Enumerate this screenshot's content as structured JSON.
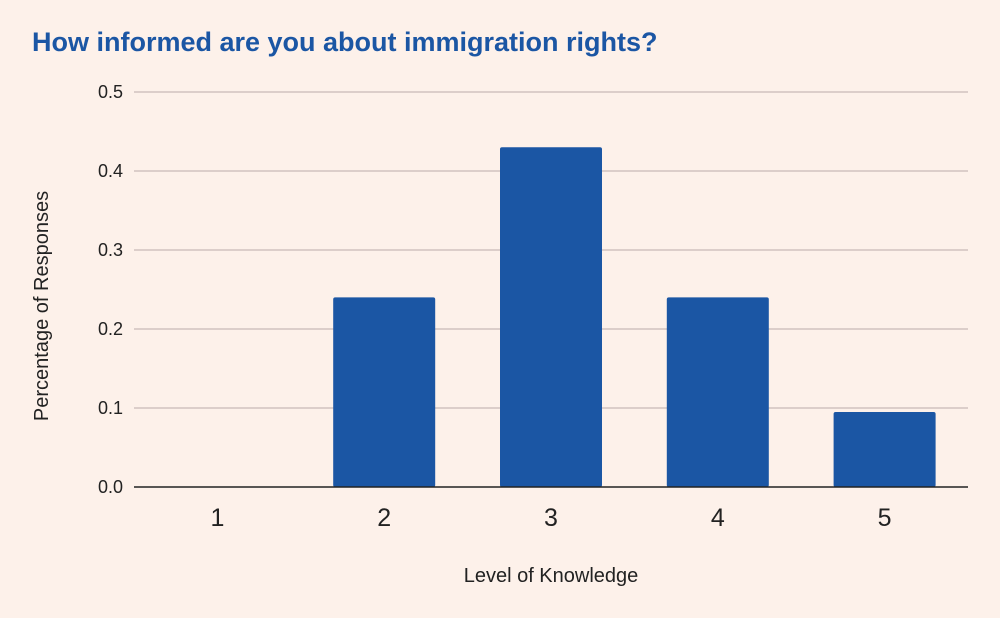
{
  "chart_data": {
    "type": "bar",
    "title": "How informed are you about immigration rights?",
    "xlabel": "Level of Knowledge",
    "ylabel": "Percentage of Responses",
    "categories": [
      "1",
      "2",
      "3",
      "4",
      "5"
    ],
    "values": [
      0.0,
      0.24,
      0.43,
      0.24,
      0.095
    ],
    "ylim": [
      0,
      0.5
    ],
    "yticks": [
      "0.0",
      "0.1",
      "0.2",
      "0.3",
      "0.4",
      "0.5"
    ],
    "grid": true,
    "legend": "none",
    "colors": {
      "bar": "#1b56a4",
      "title": "#1b56a4",
      "grid": "#c9b9b6",
      "axis": "#222222",
      "background": "#fdf1ea"
    }
  }
}
